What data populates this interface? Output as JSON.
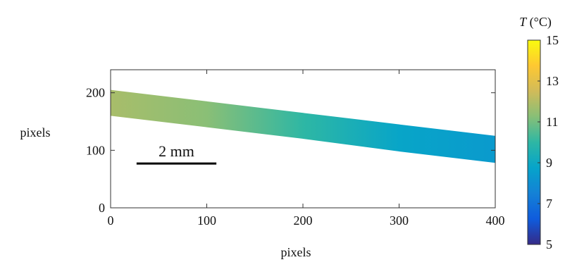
{
  "chart_data": {
    "type": "heatmap-band",
    "xlabel": "pixels",
    "ylabel": "pixels",
    "xlim": [
      0,
      400
    ],
    "ylim": [
      0,
      240
    ],
    "xticks": [
      0,
      100,
      200,
      300,
      400
    ],
    "yticks": [
      0,
      100,
      200
    ],
    "x": [
      0,
      100,
      200,
      300,
      400
    ],
    "band_top": [
      205,
      185,
      165,
      145,
      125
    ],
    "band_bottom": [
      160,
      140,
      120,
      98,
      78
    ],
    "values": [
      11.8,
      11.3,
      10.0,
      8.8,
      8.4
    ],
    "colorbar": {
      "symbol": "T",
      "unit": "(°C)",
      "clim": [
        5,
        15
      ],
      "ticks": [
        5,
        7,
        9,
        11,
        13,
        15
      ],
      "colormap": [
        "#352a87",
        "#0f5cdd",
        "#1481d6",
        "#06a4ca",
        "#2eb7a4",
        "#87bf77",
        "#d1bb59",
        "#fec832",
        "#f9fb0e"
      ]
    },
    "scalebar": {
      "label": "2 mm",
      "x": [
        27,
        110
      ],
      "y": 77
    }
  }
}
